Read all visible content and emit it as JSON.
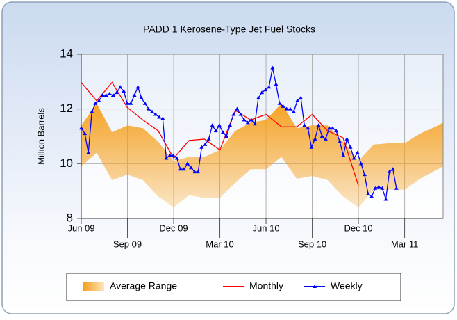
{
  "chart_data": {
    "type": "line",
    "title": "PADD 1 Kerosene-Type Jet Fuel Stocks",
    "y_label": "Million Barrels",
    "xlim": [
      0,
      23.5
    ],
    "xticks": [
      {
        "value": 0,
        "label": "Jun 09"
      },
      {
        "value": 3,
        "label": "Sep 09"
      },
      {
        "value": 6,
        "label": "Dec 09"
      },
      {
        "value": 9,
        "label": "Mar 10"
      },
      {
        "value": 12,
        "label": "Jun 10"
      },
      {
        "value": 15,
        "label": "Sep 10"
      },
      {
        "value": 18,
        "label": "Dec 10"
      },
      {
        "value": 21,
        "label": "Mar 11"
      }
    ],
    "ylim": [
      8,
      14
    ],
    "yticks": [
      8,
      10,
      12,
      14
    ],
    "grid": true,
    "legend": "bottom",
    "series": [
      {
        "name": "Average Range",
        "color": "#f7a01c",
        "x": [
          0,
          1,
          2,
          3,
          4,
          5,
          6,
          7,
          8,
          9,
          10,
          11,
          12,
          13,
          14,
          15,
          16,
          17,
          18,
          19,
          20,
          21,
          22,
          23,
          23.5
        ],
        "high": [
          11.4,
          12.2,
          11.15,
          11.4,
          11.3,
          10.8,
          10.1,
          10.25,
          10.25,
          10.5,
          11.2,
          11.5,
          11.6,
          12.2,
          11.3,
          11.4,
          11.4,
          10.8,
          10.1,
          10.7,
          10.75,
          10.75,
          11.1,
          11.35,
          11.5
        ],
        "low": [
          9.9,
          10.4,
          9.4,
          9.6,
          9.4,
          8.8,
          8.4,
          8.85,
          8.75,
          8.75,
          9.3,
          9.8,
          9.8,
          10.25,
          9.45,
          9.55,
          9.4,
          8.8,
          8.4,
          9.05,
          9.05,
          9.05,
          9.45,
          9.75,
          9.9
        ]
      },
      {
        "name": "Monthly",
        "color": "#ff0000",
        "x": [
          0,
          1,
          2,
          3,
          4,
          5,
          6,
          7,
          8,
          9,
          10,
          11,
          12,
          13,
          14,
          15,
          16,
          17,
          18
        ],
        "values": [
          12.97,
          12.3,
          12.97,
          12.05,
          11.6,
          11.2,
          10.2,
          10.85,
          10.9,
          10.5,
          11.95,
          11.6,
          11.8,
          11.35,
          11.35,
          11.8,
          11.2,
          10.95,
          9.2
        ]
      },
      {
        "name": "Weekly",
        "color": "#0000ff",
        "x": [
          0,
          0.23,
          0.46,
          0.69,
          0.92,
          1.15,
          1.38,
          1.61,
          1.84,
          2.07,
          2.3,
          2.53,
          2.76,
          2.99,
          3.22,
          3.45,
          3.68,
          3.91,
          4.14,
          4.37,
          4.6,
          4.83,
          5.06,
          5.29,
          5.52,
          5.75,
          5.98,
          6.21,
          6.44,
          6.67,
          6.9,
          7.13,
          7.36,
          7.59,
          7.82,
          8.05,
          8.28,
          8.51,
          8.74,
          8.97,
          9.2,
          9.43,
          9.66,
          9.89,
          10.12,
          10.35,
          10.58,
          10.81,
          11.04,
          11.27,
          11.5,
          11.73,
          11.96,
          12.19,
          12.42,
          12.65,
          12.88,
          13.11,
          13.34,
          13.57,
          13.8,
          14.03,
          14.26,
          14.49,
          14.72,
          14.95,
          15.18,
          15.41,
          15.64,
          15.87,
          16.1,
          16.33,
          16.56,
          16.79,
          17.02,
          17.25,
          17.48,
          17.71,
          17.94,
          18.17,
          18.4,
          18.63,
          18.86,
          19.09,
          19.32,
          19.55,
          19.78,
          20.01,
          20.24,
          20.47
        ],
        "values": [
          11.3,
          11.1,
          10.4,
          11.9,
          12.2,
          12.3,
          12.5,
          12.5,
          12.55,
          12.5,
          12.6,
          12.8,
          12.65,
          12.2,
          12.2,
          12.5,
          12.8,
          12.4,
          12.2,
          12.0,
          11.9,
          11.8,
          11.7,
          11.65,
          10.2,
          10.3,
          10.3,
          10.2,
          9.8,
          9.8,
          10.0,
          9.85,
          9.7,
          9.7,
          10.6,
          10.7,
          10.9,
          11.4,
          11.2,
          11.4,
          11.15,
          11.0,
          11.4,
          11.8,
          12.0,
          11.8,
          11.6,
          11.5,
          11.6,
          11.45,
          12.4,
          12.6,
          12.7,
          12.8,
          13.5,
          12.9,
          12.2,
          12.1,
          12.0,
          12.0,
          11.9,
          12.3,
          12.4,
          11.4,
          11.3,
          10.6,
          10.9,
          11.4,
          11.0,
          10.9,
          11.3,
          11.3,
          11.2,
          10.8,
          10.3,
          10.9,
          10.6,
          10.2,
          10.4,
          10.0,
          9.6,
          8.9,
          8.8,
          9.1,
          9.15,
          9.1,
          8.7,
          9.7,
          9.8,
          9.1
        ]
      }
    ]
  }
}
